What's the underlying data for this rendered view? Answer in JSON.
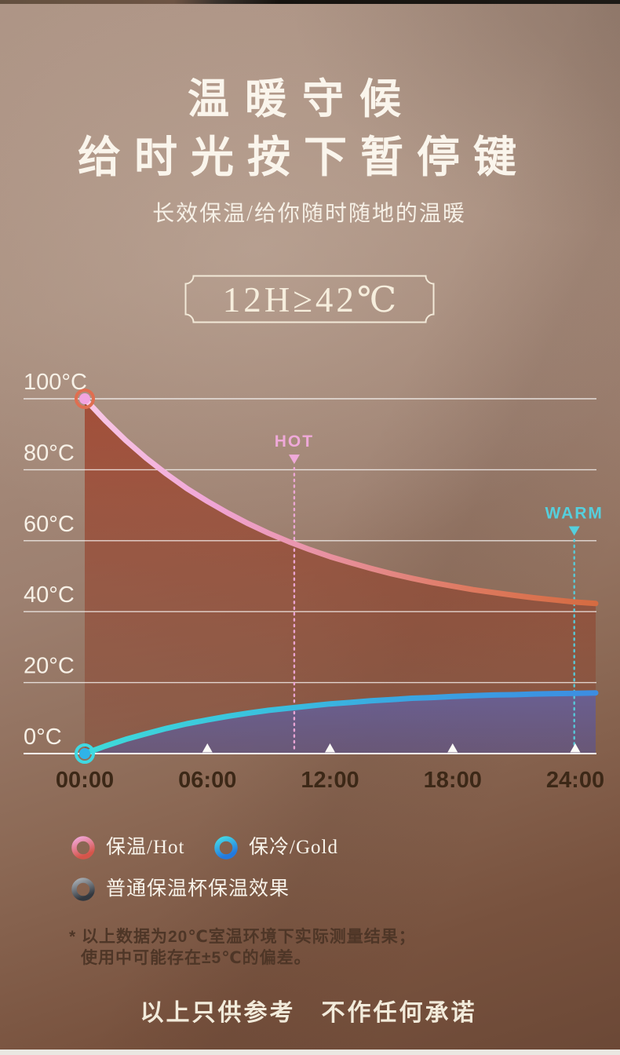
{
  "header": {
    "title_line1": "温暖守候",
    "title_line2": "给时光按下暂停键",
    "subtitle": "长效保温/给你随时随地的温暖",
    "badge_text": "12H≥42℃"
  },
  "chart_data": {
    "type": "line",
    "x_unit": "hours",
    "xlim": [
      0,
      25
    ],
    "ylim": [
      0,
      100
    ],
    "grid": true,
    "colors": {
      "grid": "#ffffff",
      "y_label": "#f7f1e7",
      "x_label": "#3c2817",
      "tick_triangle": "#fbfaf7"
    },
    "y_ticks": [
      {
        "v": 100,
        "label": "100°C"
      },
      {
        "v": 80,
        "label": "80°C"
      },
      {
        "v": 60,
        "label": "60°C"
      },
      {
        "v": 40,
        "label": "40°C"
      },
      {
        "v": 20,
        "label": "20°C"
      },
      {
        "v": 0,
        "label": "0°C"
      }
    ],
    "x_ticks": [
      {
        "t": 0,
        "label": "00:00",
        "marker": false
      },
      {
        "t": 6,
        "label": "06:00",
        "marker": true
      },
      {
        "t": 12,
        "label": "12:00",
        "marker": true
      },
      {
        "t": 18,
        "label": "18:00",
        "marker": true
      },
      {
        "t": 24,
        "label": "24:00",
        "marker": true
      }
    ],
    "series": [
      {
        "id": "hot",
        "name": "保温/Hot",
        "x": [
          0,
          1,
          2,
          3,
          4,
          5,
          6,
          7,
          8,
          9,
          10,
          11,
          12,
          13,
          14,
          15,
          16,
          17,
          18,
          19,
          20,
          21,
          22,
          23,
          24,
          25
        ],
        "values": [
          100,
          93.9,
          88.3,
          83.3,
          78.8,
          74.7,
          71.1,
          67.8,
          64.8,
          62.1,
          59.7,
          57.5,
          55.5,
          53.8,
          52.2,
          50.7,
          49.4,
          48.2,
          47.2,
          46.2,
          45.4,
          44.6,
          43.9,
          43.3,
          42.7,
          42.3
        ],
        "stroke_gradient": [
          "#f8c9e7",
          "#f0a5d6",
          "#e78f9a",
          "#de7a60",
          "#d56b41"
        ],
        "fill_gradient": [
          "rgba(160,54,30,0.72)",
          "rgba(134,76,56,0.5)"
        ],
        "fill_top": 100,
        "start_dot": {
          "fill": "#f2a4e0",
          "ring": "#e06e50"
        }
      },
      {
        "id": "cold",
        "name": "保冷/Gold",
        "x": [
          0,
          1,
          2,
          3,
          4,
          5,
          6,
          7,
          8,
          9,
          10,
          11,
          12,
          13,
          14,
          15,
          16,
          17,
          18,
          19,
          20,
          21,
          22,
          23,
          24,
          25
        ],
        "values": [
          0,
          2.1,
          4.0,
          5.6,
          7.1,
          8.4,
          9.5,
          10.5,
          11.4,
          12.2,
          12.8,
          13.4,
          14.0,
          14.4,
          14.9,
          15.2,
          15.6,
          15.8,
          16.1,
          16.3,
          16.5,
          16.6,
          16.8,
          16.9,
          17.0,
          17.1
        ],
        "stroke_gradient": [
          "#3fdbd9",
          "#3ac2de",
          "#3aa2e2",
          "#3c8de2"
        ],
        "fill_gradient": [
          "rgba(98,100,172,0.8)",
          "rgba(88,88,150,0.62)"
        ],
        "fill_top": 20,
        "start_dot": {
          "fill": "#2fb3e8",
          "ring": "#3fd9e2"
        }
      }
    ],
    "annotations": [
      {
        "label": "HOT",
        "t": 10.25,
        "line_top": 80.5,
        "color": "#efa9d9"
      },
      {
        "label": "WARM",
        "t": 23.95,
        "line_top": 60.3,
        "color": "#55cfdd"
      }
    ]
  },
  "legend": {
    "items": [
      {
        "id": "hot",
        "label": "保温/Hot",
        "ring": [
          "#f0a6d6",
          "#d5554a"
        ]
      },
      {
        "id": "cold",
        "label": "保冷/Gold",
        "ring": [
          "#44d8e6",
          "#2379de"
        ]
      },
      {
        "id": "ordinary",
        "label": "普通保温杯保温效果",
        "ring": [
          "#a8aeb4",
          "#33383f"
        ]
      }
    ]
  },
  "footnote": {
    "line1": "* 以上数据为20℃室温环境下实际测量结果；",
    "line2": "使用中可能存在±5℃的偏差。"
  },
  "disclaimer": "以上只供参考　不作任何承诺"
}
